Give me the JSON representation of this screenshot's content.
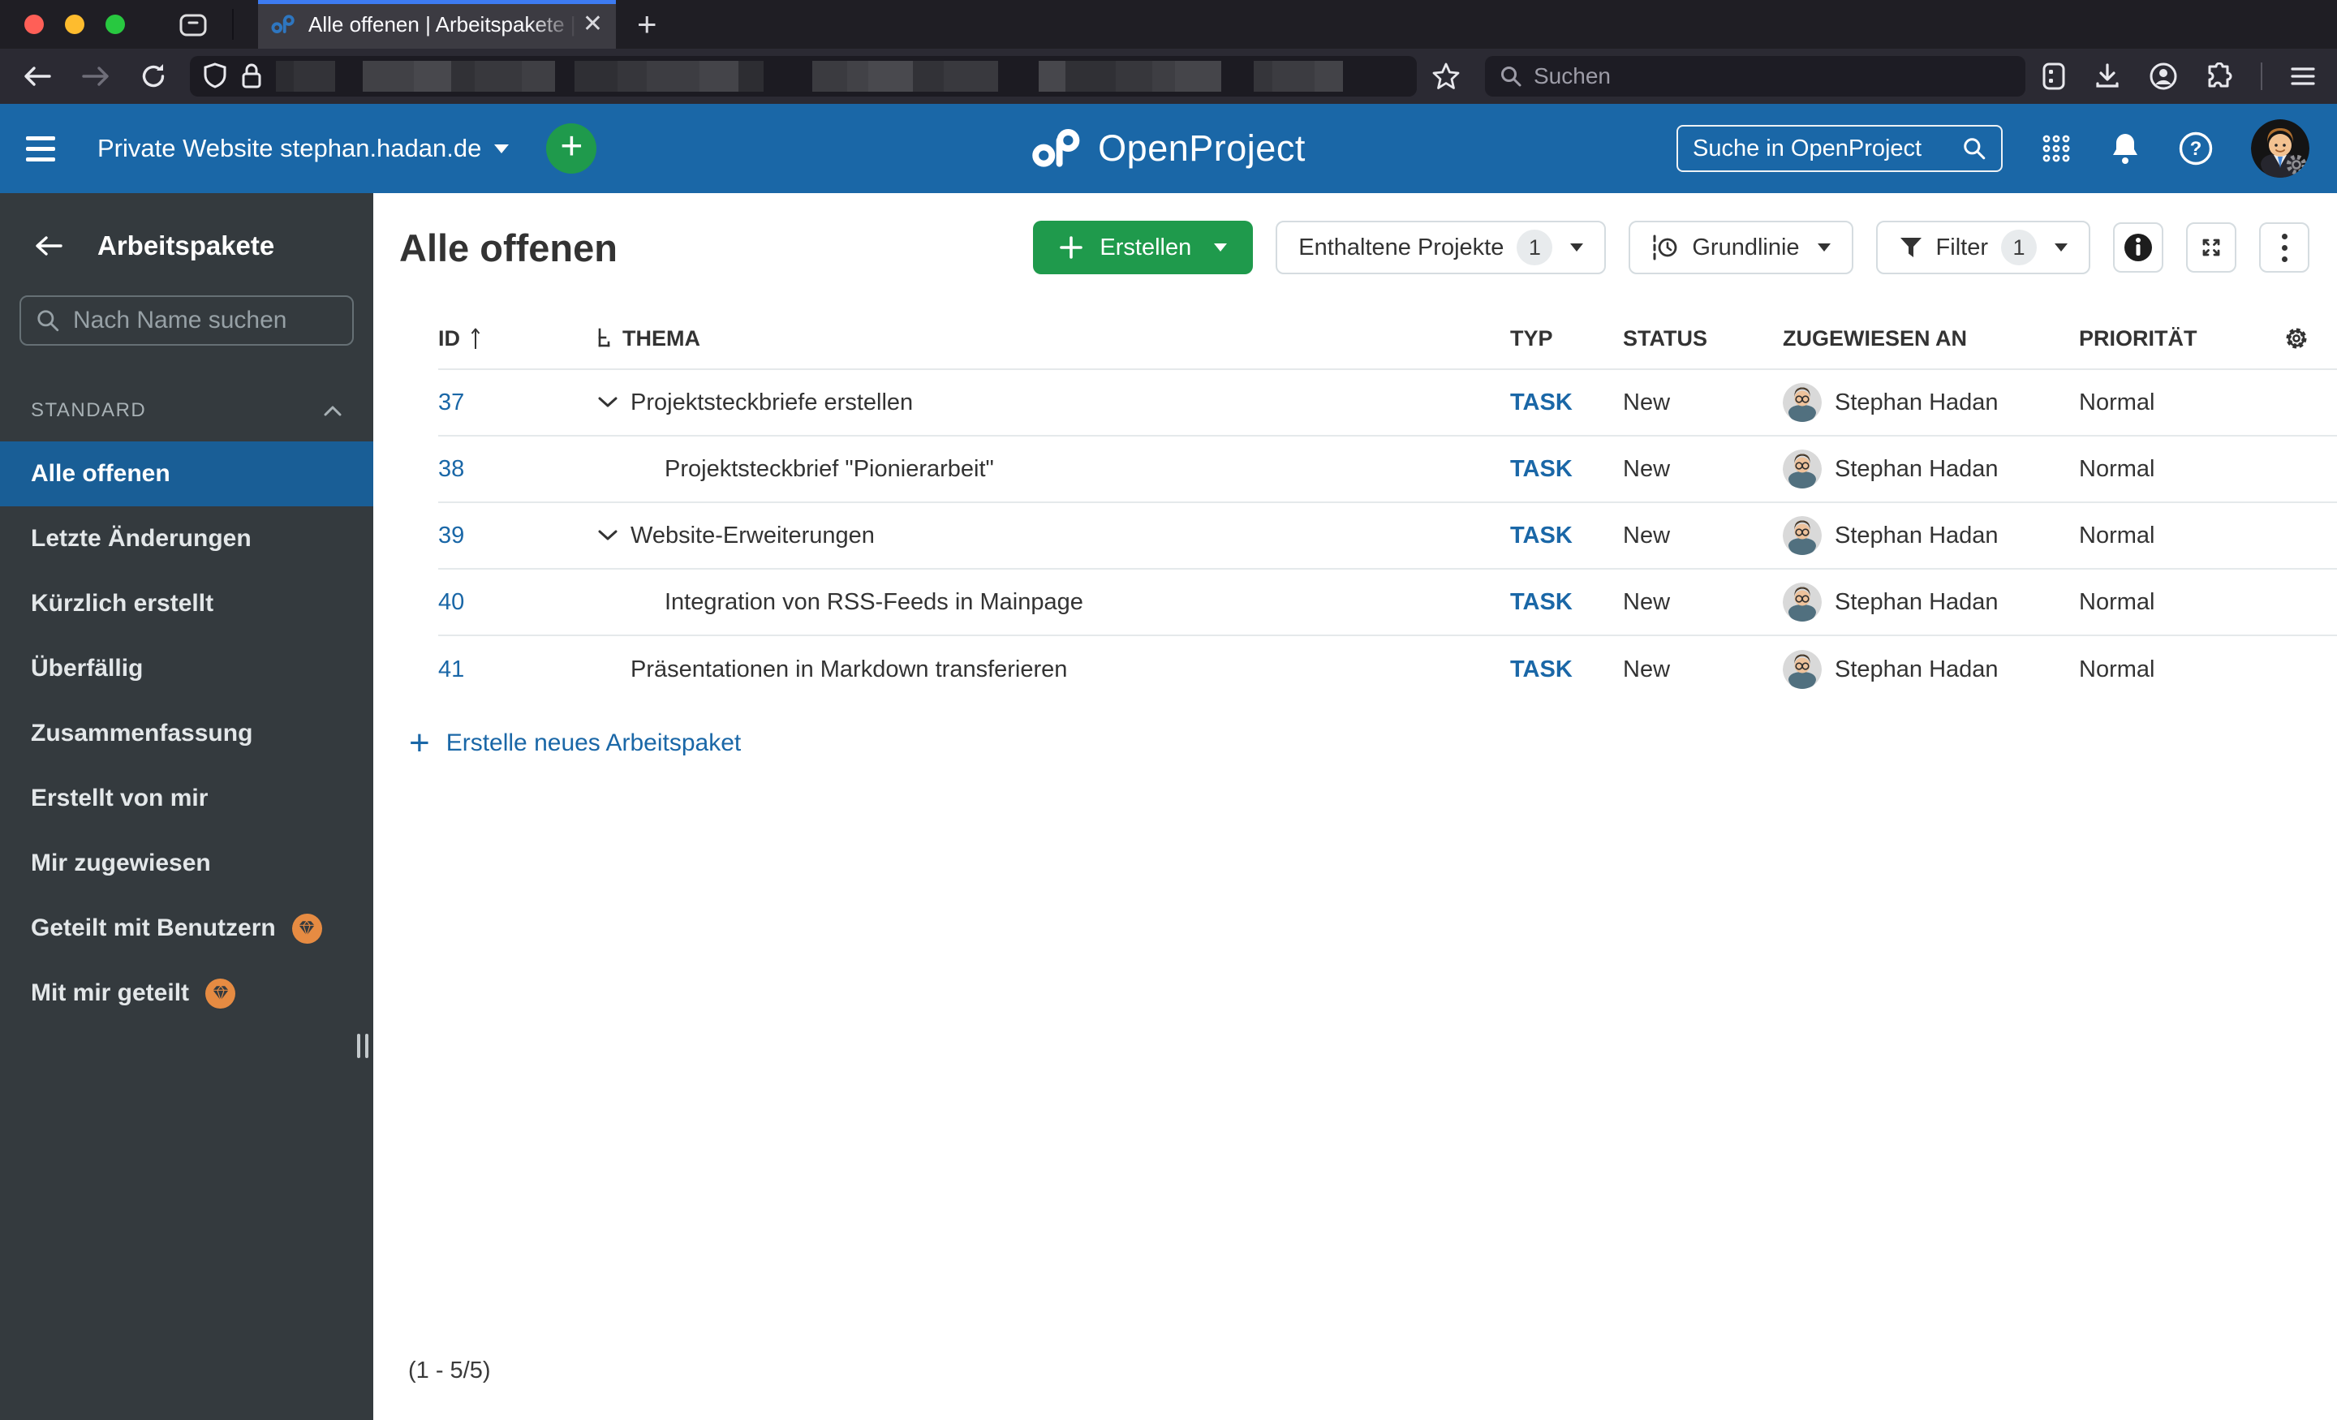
{
  "browser": {
    "tab_title": "Alle offenen | Arbeitspakete | Pri",
    "close_tab_glyph": "✕",
    "new_tab_glyph": "+",
    "search_placeholder": "Suchen"
  },
  "header": {
    "project_selector": "Private Website stephan.hadan.de",
    "logo_text": "OpenProject",
    "search_placeholder": "Suche in OpenProject"
  },
  "sidebar": {
    "title": "Arbeitspakete",
    "search_placeholder": "Nach Name suchen",
    "section_label": "STANDARD",
    "items": [
      {
        "label": "Alle offenen",
        "selected": true,
        "enterprise": false
      },
      {
        "label": "Letzte Änderungen",
        "selected": false,
        "enterprise": false
      },
      {
        "label": "Kürzlich erstellt",
        "selected": false,
        "enterprise": false
      },
      {
        "label": "Überfällig",
        "selected": false,
        "enterprise": false
      },
      {
        "label": "Zusammenfassung",
        "selected": false,
        "enterprise": false
      },
      {
        "label": "Erstellt von mir",
        "selected": false,
        "enterprise": false
      },
      {
        "label": "Mir zugewiesen",
        "selected": false,
        "enterprise": false
      },
      {
        "label": "Geteilt mit Benutzern",
        "selected": false,
        "enterprise": true
      },
      {
        "label": "Mit mir geteilt",
        "selected": false,
        "enterprise": true
      }
    ]
  },
  "toolbar": {
    "page_title": "Alle offenen",
    "create_label": "Erstellen",
    "projects_label": "Enthaltene Projekte",
    "projects_count": "1",
    "baseline_label": "Grundlinie",
    "filter_label": "Filter",
    "filter_count": "1"
  },
  "table": {
    "headers": {
      "id": "ID",
      "subject": "THEMA",
      "type": "TYP",
      "status": "STATUS",
      "assignee": "ZUGEWIESEN AN",
      "priority": "PRIORITÄT"
    },
    "rows": [
      {
        "id": "37",
        "level": 0,
        "expandable": true,
        "subject": "Projektsteckbriefe erstellen",
        "type": "TASK",
        "status": "New",
        "assignee": "Stephan Hadan",
        "priority": "Normal"
      },
      {
        "id": "38",
        "level": 1,
        "expandable": false,
        "subject": "Projektsteckbrief \"Pionierarbeit\"",
        "type": "TASK",
        "status": "New",
        "assignee": "Stephan Hadan",
        "priority": "Normal"
      },
      {
        "id": "39",
        "level": 0,
        "expandable": true,
        "subject": "Website-Erweiterungen",
        "type": "TASK",
        "status": "New",
        "assignee": "Stephan Hadan",
        "priority": "Normal"
      },
      {
        "id": "40",
        "level": 1,
        "expandable": false,
        "subject": "Integration von RSS-Feeds in Mainpage",
        "type": "TASK",
        "status": "New",
        "assignee": "Stephan Hadan",
        "priority": "Normal"
      },
      {
        "id": "41",
        "level": 0,
        "expandable": false,
        "subject": "Präsentationen in Markdown transferieren",
        "type": "TASK",
        "status": "New",
        "assignee": "Stephan Hadan",
        "priority": "Normal"
      }
    ],
    "create_link_label": "Erstelle neues Arbeitspaket",
    "pagination": "(1 - 5/5)"
  },
  "colors": {
    "header_blue": "#1a67a7",
    "selected_blue": "#195e96",
    "create_green": "#1f9a4c",
    "link_blue": "#1a67a7",
    "enterprise_orange": "#e68b42",
    "sidebar_bg": "#343a3e"
  }
}
